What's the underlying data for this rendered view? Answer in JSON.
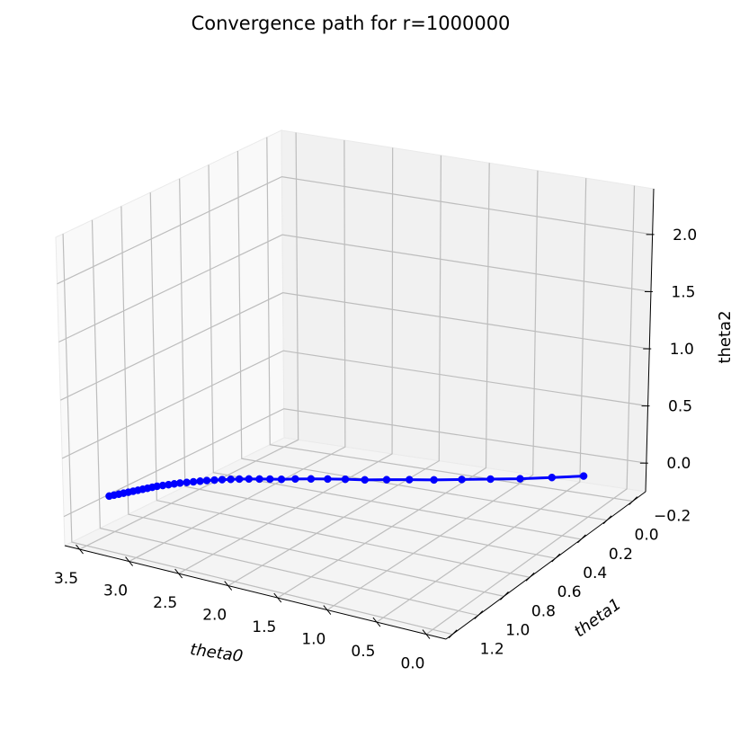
{
  "chart_data": {
    "type": "line",
    "projection": "3d",
    "title": "Convergence path for r=1000000",
    "xlabel": "theta0",
    "ylabel": "theta1",
    "zlabel": "theta2",
    "xlim": [
      -0.2,
      3.65
    ],
    "ylim": [
      -0.3,
      1.25
    ],
    "zlim": [
      -0.25,
      2.4
    ],
    "xticks": [
      "3.5",
      "3.0",
      "2.5",
      "2.0",
      "1.5",
      "1.0",
      "0.5",
      "0.0"
    ],
    "yticks": [
      "−0.2",
      "0.0",
      "0.2",
      "0.4",
      "0.6",
      "0.8",
      "1.0",
      "1.2"
    ],
    "zticks": [
      "0.0",
      "0.5",
      "1.0",
      "1.5",
      "2.0"
    ],
    "grid": true,
    "color": "#0000ff",
    "marker": "circle",
    "series": [
      {
        "theta0": [
          0.05,
          0.3,
          0.55,
          0.79,
          1.02,
          1.24,
          1.44,
          1.62,
          1.79,
          1.95,
          2.09,
          2.22,
          2.34,
          2.44,
          2.53,
          2.61,
          2.69,
          2.76,
          2.82,
          2.88,
          2.93,
          2.98,
          3.02,
          3.06,
          3.1,
          3.14,
          3.17,
          3.2,
          3.23,
          3.26,
          3.28,
          3.3,
          3.32,
          3.34,
          3.36,
          3.38,
          3.4,
          3.42,
          3.44,
          3.46
        ],
        "theta1": [
          0.0,
          0.06,
          0.12,
          0.17,
          0.22,
          0.27,
          0.31,
          0.35,
          0.39,
          0.42,
          0.45,
          0.48,
          0.51,
          0.54,
          0.56,
          0.58,
          0.6,
          0.62,
          0.64,
          0.66,
          0.68,
          0.7,
          0.72,
          0.74,
          0.76,
          0.78,
          0.8,
          0.82,
          0.84,
          0.86,
          0.88,
          0.9,
          0.92,
          0.94,
          0.96,
          0.98,
          1.0,
          1.02,
          1.04,
          1.06
        ],
        "theta2": [
          0.1,
          0.1,
          0.1,
          0.1,
          0.1,
          0.1,
          0.1,
          0.1,
          0.1,
          0.1,
          0.1,
          0.1,
          0.1,
          0.1,
          0.1,
          0.1,
          0.1,
          0.1,
          0.1,
          0.1,
          0.1,
          0.1,
          0.1,
          0.1,
          0.1,
          0.1,
          0.1,
          0.1,
          0.1,
          0.1,
          0.1,
          0.1,
          0.1,
          0.1,
          0.1,
          0.1,
          0.1,
          0.1,
          0.1,
          0.1
        ]
      }
    ]
  }
}
